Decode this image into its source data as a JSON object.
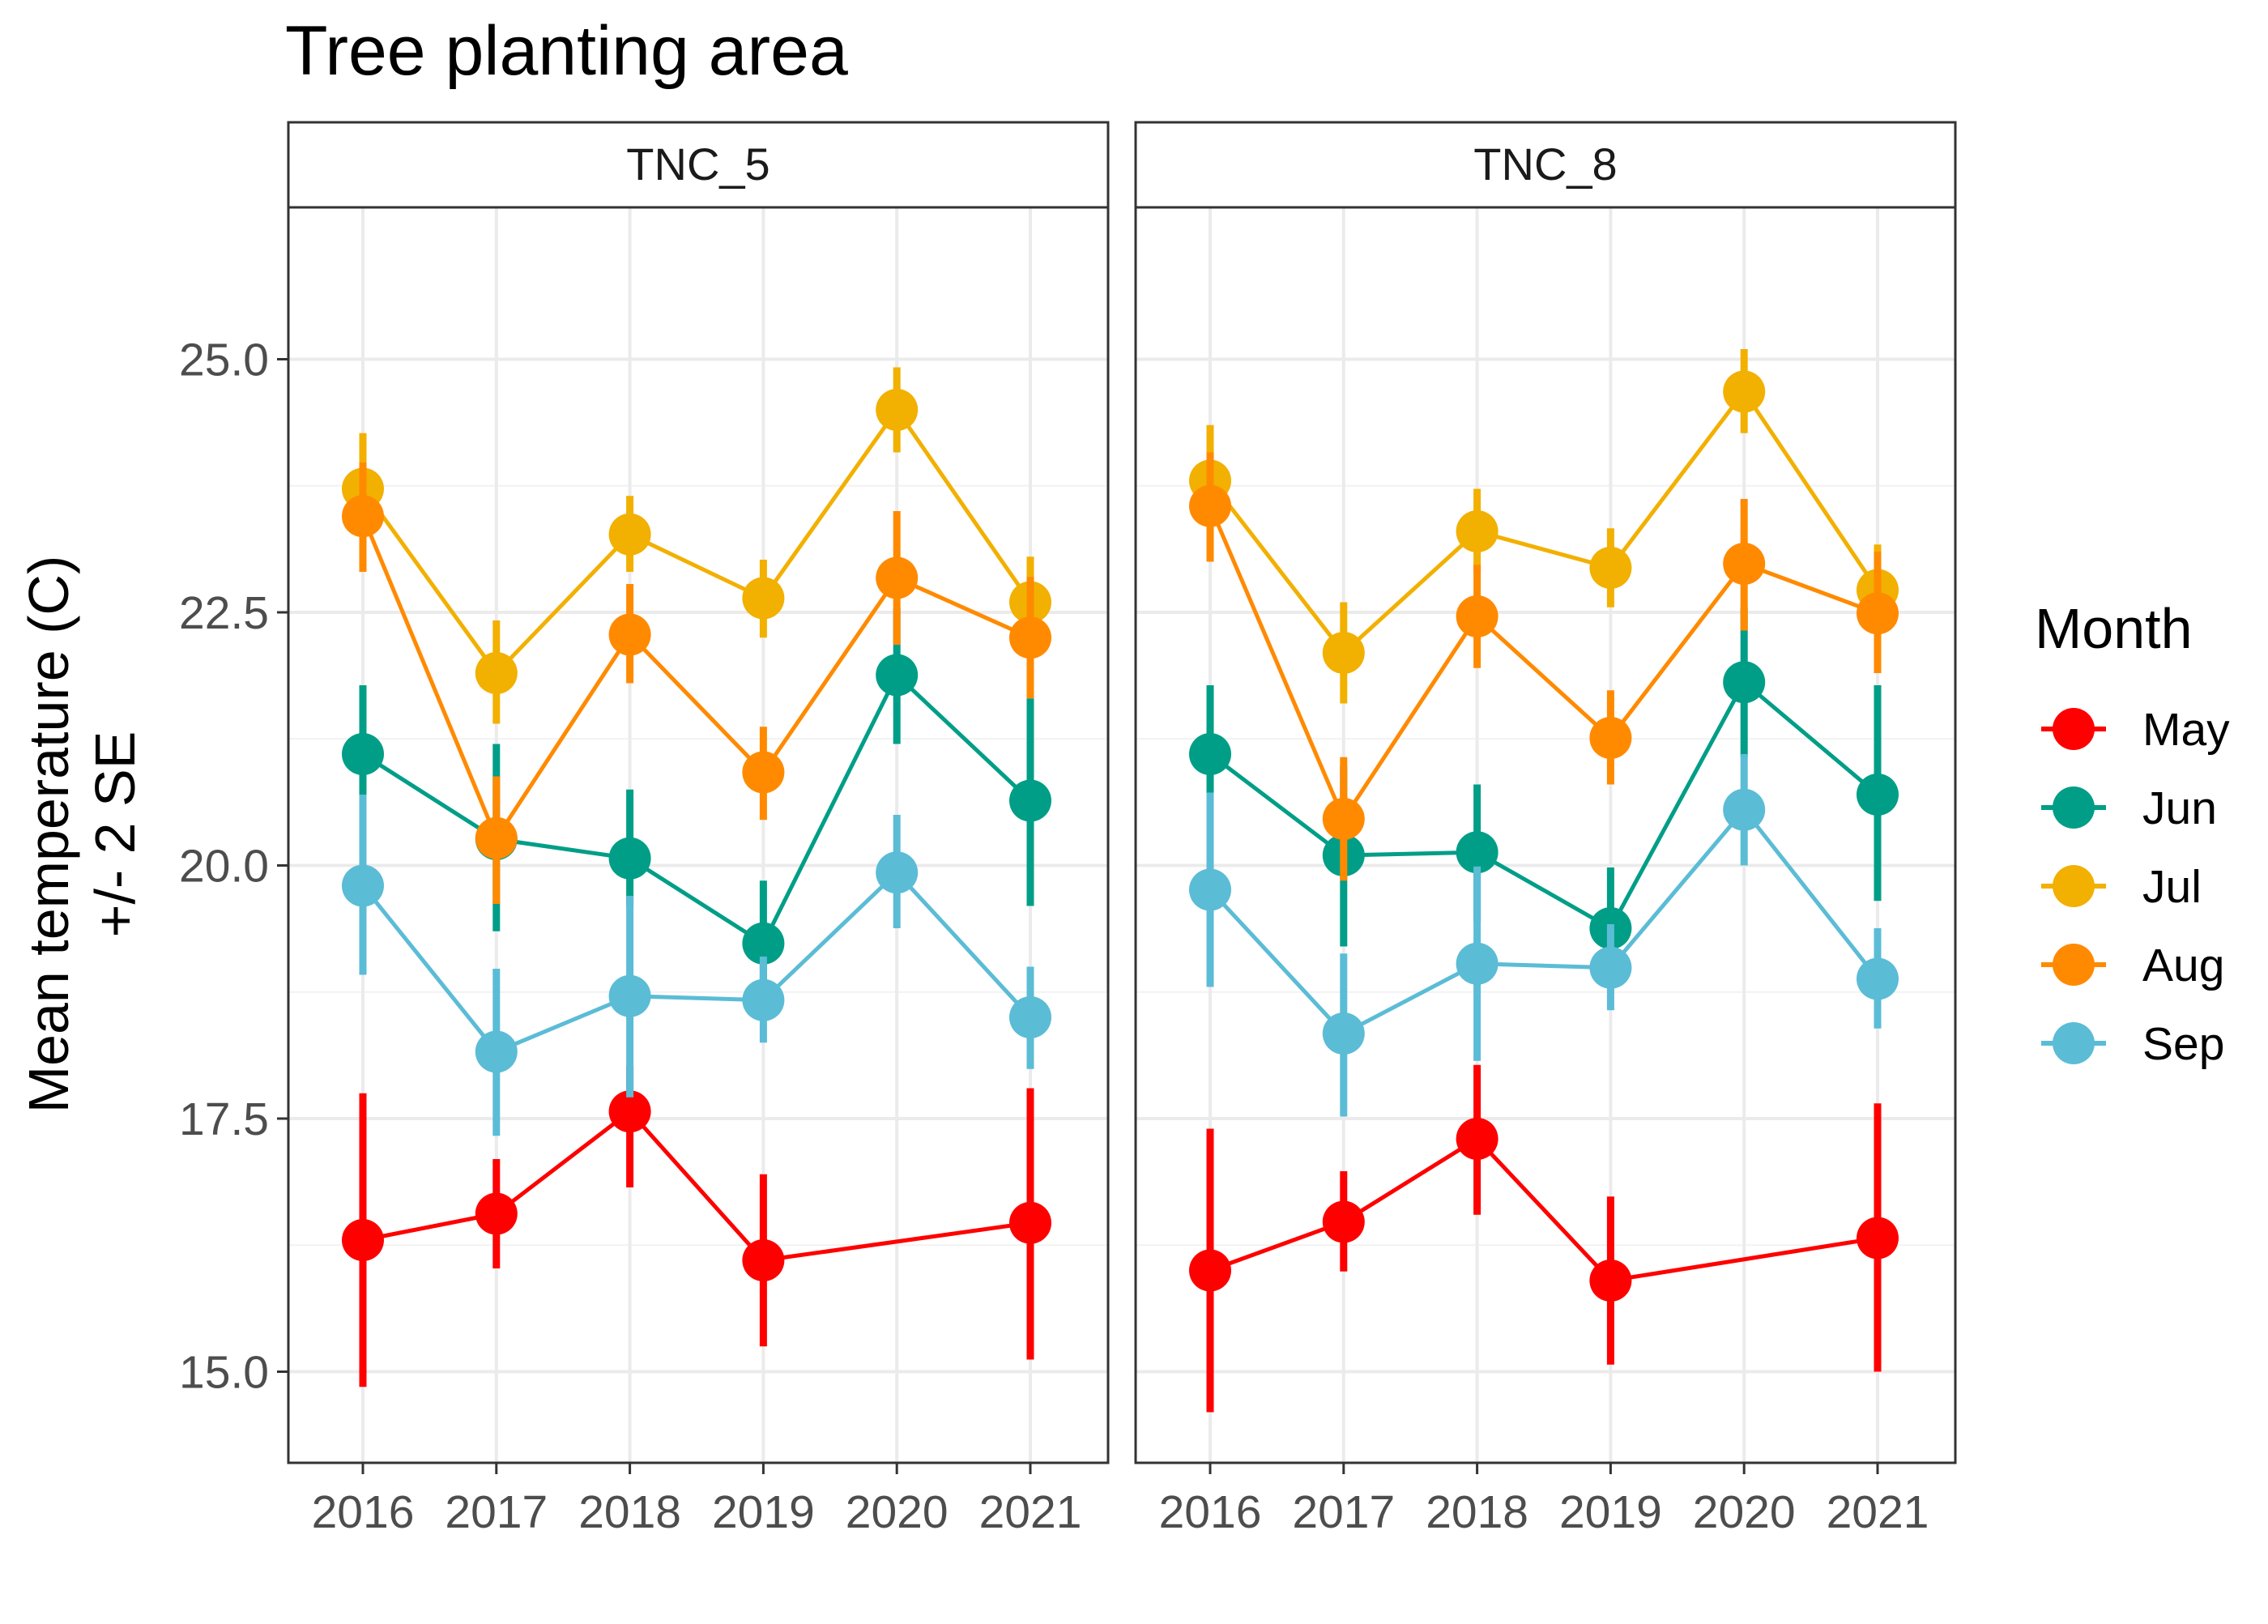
{
  "chart_data": {
    "type": "line",
    "title": "Tree planting area",
    "ylabel": [
      "Mean temperature (C)",
      "+/- 2 SE"
    ],
    "xlabel": "",
    "x": [
      "2016",
      "2017",
      "2018",
      "2019",
      "2020",
      "2021"
    ],
    "ylim": [
      14.1,
      26.5
    ],
    "yticks": [
      15.0,
      17.5,
      20.0,
      22.5,
      25.0
    ],
    "ytick_labels": [
      "15.0",
      "17.5",
      "20.0",
      "22.5",
      "25.0"
    ],
    "grid": true,
    "legend": {
      "title": "Month",
      "position": "right"
    },
    "panels": [
      {
        "name": "TNC_5",
        "series": [
          {
            "name": "May",
            "color": "#FF0000",
            "values": [
              16.3,
              16.56,
              17.57,
              16.1,
              null,
              16.47
            ],
            "lower": [
              14.85,
              16.02,
              16.82,
              15.25,
              null,
              15.12
            ],
            "upper": [
              17.75,
              17.1,
              18.02,
              16.95,
              null,
              17.8
            ]
          },
          {
            "name": "Jun",
            "color": "#009E87",
            "values": [
              21.1,
              20.26,
              20.07,
              19.23,
              21.88,
              20.64
            ],
            "lower": [
              20.45,
              19.35,
              19.6,
              18.83,
              21.2,
              19.6
            ],
            "upper": [
              21.78,
              21.2,
              20.75,
              19.85,
              22.55,
              21.65
            ]
          },
          {
            "name": "Jul",
            "color": "#F2B000",
            "values": [
              23.72,
              21.9,
              23.27,
              22.64,
              24.5,
              22.6
            ],
            "lower": [
              23.2,
              21.4,
              22.9,
              22.25,
              24.08,
              22.15
            ],
            "upper": [
              24.27,
              22.42,
              23.65,
              23.02,
              24.92,
              23.05
            ]
          },
          {
            "name": "Aug",
            "color": "#FF8A00",
            "values": [
              23.45,
              20.27,
              22.28,
              20.92,
              22.84,
              22.25
            ],
            "lower": [
              22.9,
              19.62,
              21.8,
              20.45,
              22.18,
              21.65
            ],
            "upper": [
              23.98,
              20.88,
              22.78,
              21.37,
              23.5,
              22.85
            ]
          },
          {
            "name": "Sep",
            "color": "#5BBCD6",
            "values": [
              19.8,
              18.16,
              18.71,
              18.67,
              19.93,
              18.5
            ],
            "lower": [
              18.92,
              17.33,
              17.71,
              18.25,
              19.38,
              17.99
            ],
            "upper": [
              20.7,
              18.98,
              19.7,
              19.1,
              20.5,
              19.0
            ]
          }
        ]
      },
      {
        "name": "TNC_8",
        "series": [
          {
            "name": "May",
            "color": "#FF0000",
            "values": [
              16.0,
              16.48,
              17.3,
              15.9,
              null,
              16.32
            ],
            "lower": [
              14.6,
              15.99,
              16.55,
              15.07,
              null,
              15.0
            ],
            "upper": [
              17.4,
              16.98,
              18.03,
              16.73,
              null,
              17.65
            ]
          },
          {
            "name": "Jun",
            "color": "#009E87",
            "values": [
              21.1,
              20.1,
              20.13,
              19.38,
              21.81,
              20.7
            ],
            "lower": [
              20.45,
              19.2,
              19.45,
              18.83,
              21.07,
              19.65
            ],
            "upper": [
              21.78,
              20.98,
              20.8,
              19.98,
              22.55,
              21.78
            ]
          },
          {
            "name": "Jul",
            "color": "#F2B000",
            "values": [
              23.8,
              22.1,
              23.3,
              22.94,
              24.68,
              22.72
            ],
            "lower": [
              23.3,
              21.6,
              22.9,
              22.55,
              24.27,
              22.25
            ],
            "upper": [
              24.35,
              22.6,
              23.72,
              23.33,
              25.1,
              23.17
            ]
          },
          {
            "name": "Aug",
            "color": "#FF8A00",
            "values": [
              23.55,
              20.46,
              22.46,
              21.26,
              22.98,
              22.49
            ],
            "lower": [
              23.0,
              19.85,
              21.95,
              20.8,
              22.32,
              21.9
            ],
            "upper": [
              24.08,
              21.07,
              22.97,
              21.73,
              23.62,
              23.1
            ]
          },
          {
            "name": "Sep",
            "color": "#5BBCD6",
            "values": [
              19.76,
              18.34,
              19.03,
              18.99,
              20.55,
              18.88
            ],
            "lower": [
              18.8,
              17.52,
              18.07,
              18.57,
              20.0,
              18.39
            ],
            "upper": [
              20.72,
              19.13,
              19.99,
              19.42,
              21.1,
              19.38
            ]
          }
        ]
      }
    ]
  }
}
